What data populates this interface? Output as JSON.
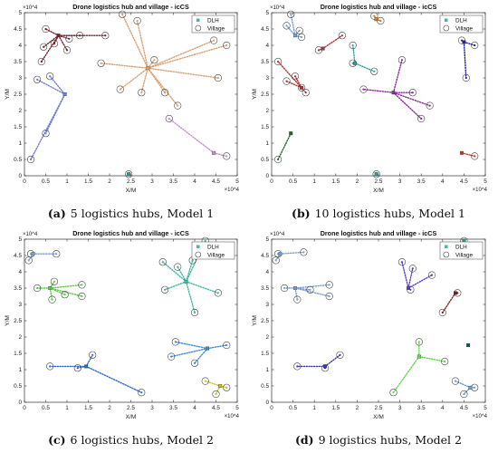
{
  "chart_data": [
    {
      "type": "scatter",
      "title": "Drone logistics hub and village - icCS",
      "xlabel": "X/M",
      "ylabel": "Y/M",
      "x_multiplier": "×10^4",
      "y_multiplier": "×10^4",
      "xlim": [
        0,
        5
      ],
      "ylim": [
        0,
        5
      ],
      "xticks": [
        "0",
        "0.5",
        "1",
        "1.5",
        "2",
        "2.5",
        "3",
        "3.5",
        "4",
        "4.5",
        "5"
      ],
      "yticks": [
        "0",
        "0.5",
        "1",
        "1.5",
        "2",
        "2.5",
        "3",
        "3.5",
        "4",
        "4.5",
        "5"
      ],
      "legend": [
        "DLH",
        "Village"
      ],
      "legend_position": "top-right",
      "caption_label": "(a)",
      "caption_text": "5 logistics hubs, Model 1",
      "hubs": [
        {
          "x": 0.8,
          "y": 4.3,
          "color": "#7a1f2a",
          "villages": [
            [
              0.5,
              4.5
            ],
            [
              0.7,
              4.05
            ],
            [
              0.45,
              3.95
            ],
            [
              1.0,
              3.85
            ],
            [
              0.4,
              3.5
            ],
            [
              1.3,
              4.3
            ],
            [
              1.9,
              4.3
            ],
            [
              1.05,
              4.2
            ]
          ]
        },
        {
          "x": 2.9,
          "y": 3.3,
          "color": "#d8a070",
          "villages": [
            [
              2.3,
              4.95
            ],
            [
              2.65,
              4.75
            ],
            [
              3.05,
              3.55
            ],
            [
              1.8,
              3.45
            ],
            [
              2.25,
              2.65
            ],
            [
              2.75,
              2.55
            ],
            [
              3.3,
              2.55
            ],
            [
              3.6,
              2.15
            ],
            [
              4.45,
              4.15
            ],
            [
              4.75,
              4.0
            ],
            [
              4.55,
              3.0
            ]
          ]
        },
        {
          "x": 0.95,
          "y": 2.5,
          "color": "#6f7bd6",
          "villages": [
            [
              0.3,
              2.95
            ],
            [
              0.6,
              3.05
            ],
            [
              0.5,
              1.3
            ],
            [
              0.15,
              0.5
            ]
          ]
        },
        {
          "x": 4.45,
          "y": 0.7,
          "color": "#c98ad0",
          "villages": [
            [
              3.4,
              1.75
            ],
            [
              4.75,
              0.6
            ]
          ]
        },
        {
          "x": 2.45,
          "y": 0.05,
          "color": "#2a9a9a",
          "villages": [
            [
              2.45,
              0.05
            ]
          ]
        }
      ]
    },
    {
      "type": "scatter",
      "title": "Drone logistics hub and village - icCS",
      "xlabel": "X/M",
      "ylabel": "Y/M",
      "x_multiplier": "×10^4",
      "y_multiplier": "×10^4",
      "xlim": [
        0,
        5
      ],
      "ylim": [
        0,
        5
      ],
      "xticks": [
        "0",
        "0.5",
        "1",
        "1.5",
        "2",
        "2.5",
        "3",
        "3.5",
        "4",
        "4.5",
        "5"
      ],
      "yticks": [
        "0",
        "0.5",
        "1",
        "1.5",
        "2",
        "2.5",
        "3",
        "3.5",
        "4",
        "4.5",
        "5"
      ],
      "legend": [
        "DLH",
        "Village"
      ],
      "legend_position": "top-right",
      "caption_label": "(b)",
      "caption_text": "10 logistics hubs, Model 1",
      "hubs": [
        {
          "x": 0.55,
          "y": 4.3,
          "color": "#7a9ed0",
          "villages": [
            [
              0.45,
              4.95
            ],
            [
              0.35,
              4.6
            ],
            [
              0.65,
              4.45
            ],
            [
              0.7,
              4.25
            ]
          ]
        },
        {
          "x": 1.2,
          "y": 3.9,
          "color": "#b33030",
          "villages": [
            [
              1.1,
              3.85
            ],
            [
              1.65,
              4.3
            ]
          ]
        },
        {
          "x": 0.7,
          "y": 2.7,
          "color": "#b33030",
          "villages": [
            [
              0.15,
              3.5
            ],
            [
              0.55,
              3.05
            ],
            [
              0.35,
              2.9
            ],
            [
              0.8,
              2.55
            ],
            [
              0.7,
              2.7
            ]
          ]
        },
        {
          "x": 1.95,
          "y": 3.45,
          "color": "#2aa7a0",
          "villages": [
            [
              1.9,
              4.0
            ],
            [
              2.4,
              3.2
            ],
            [
              1.9,
              3.45
            ]
          ]
        },
        {
          "x": 2.45,
          "y": 4.8,
          "color": "#d17a2a",
          "villages": [
            [
              2.4,
              4.9
            ],
            [
              2.55,
              4.75
            ]
          ]
        },
        {
          "x": 2.85,
          "y": 2.55,
          "color": "#8a2a9a",
          "villages": [
            [
              2.15,
              2.65
            ],
            [
              3.05,
              3.55
            ],
            [
              3.3,
              2.55
            ],
            [
              3.5,
              1.75
            ],
            [
              3.7,
              2.15
            ]
          ]
        },
        {
          "x": 4.5,
          "y": 4.1,
          "color": "#2020a0",
          "villages": [
            [
              4.45,
              4.15
            ],
            [
              4.75,
              4.0
            ],
            [
              4.55,
              3.0
            ]
          ]
        },
        {
          "x": 0.45,
          "y": 1.3,
          "color": "#1f6a2a",
          "villages": [
            [
              0.15,
              0.5
            ]
          ]
        },
        {
          "x": 4.45,
          "y": 0.7,
          "color": "#c0392b",
          "villages": [
            [
              4.75,
              0.6
            ]
          ]
        },
        {
          "x": 2.45,
          "y": 0.05,
          "color": "#2a9a9a",
          "villages": [
            [
              2.45,
              0.05
            ]
          ]
        }
      ]
    },
    {
      "type": "scatter",
      "title": "Drone logistics hub and village - icCS",
      "xlabel": "X/M",
      "ylabel": "Y/M",
      "x_multiplier": "×10^4",
      "y_multiplier": "×10^4",
      "xlim": [
        0,
        5
      ],
      "ylim": [
        0,
        5
      ],
      "xticks": [
        "0",
        "0.5",
        "1",
        "1.5",
        "2",
        "2.5",
        "3",
        "3.5",
        "4",
        "4.5",
        "5"
      ],
      "yticks": [
        "0",
        "0.5",
        "1",
        "1.5",
        "2",
        "2.5",
        "3",
        "3.5",
        "4",
        "4.5",
        "5"
      ],
      "legend": [
        "DLH",
        "Village"
      ],
      "legend_position": "top-right",
      "caption_label": "(c)",
      "caption_text": "6 logistics hubs, Model 2",
      "hubs": [
        {
          "x": 0.2,
          "y": 4.55,
          "color": "#7a9ed0",
          "villages": [
            [
              0.15,
              4.55
            ],
            [
              0.75,
              4.55
            ],
            [
              0.1,
              4.35
            ]
          ]
        },
        {
          "x": 0.6,
          "y": 3.5,
          "color": "#5fc84a",
          "villages": [
            [
              0.3,
              3.5
            ],
            [
              1.35,
              3.6
            ],
            [
              1.35,
              3.25
            ],
            [
              0.95,
              3.3
            ],
            [
              0.65,
              3.15
            ],
            [
              0.7,
              3.7
            ]
          ]
        },
        {
          "x": 3.8,
          "y": 3.7,
          "color": "#3fb8a0",
          "villages": [
            [
              3.25,
              4.3
            ],
            [
              3.6,
              4.15
            ],
            [
              3.95,
              4.35
            ],
            [
              4.25,
              4.95
            ],
            [
              4.55,
              3.35
            ],
            [
              4.0,
              2.75
            ],
            [
              3.3,
              3.45
            ]
          ]
        },
        {
          "x": 1.45,
          "y": 1.1,
          "color": "#2a6ad0",
          "villages": [
            [
              0.6,
              1.1
            ],
            [
              1.25,
              1.05
            ],
            [
              1.6,
              1.45
            ],
            [
              2.75,
              0.3
            ]
          ]
        },
        {
          "x": 4.3,
          "y": 1.65,
          "color": "#3a8ad8",
          "villages": [
            [
              3.55,
              1.85
            ],
            [
              3.45,
              1.4
            ],
            [
              4.0,
              1.2
            ],
            [
              4.75,
              1.75
            ]
          ]
        },
        {
          "x": 4.6,
          "y": 0.5,
          "color": "#c8c020",
          "villages": [
            [
              4.25,
              0.65
            ],
            [
              4.5,
              0.25
            ],
            [
              4.75,
              0.45
            ]
          ]
        }
      ]
    },
    {
      "type": "scatter",
      "title": "Drone logistics hub and village - icCS",
      "xlabel": "X/M",
      "ylabel": "Y/M",
      "x_multiplier": "×10^4",
      "y_multiplier": "×10^4",
      "xlim": [
        0,
        5
      ],
      "ylim": [
        0,
        5
      ],
      "xticks": [
        "0",
        "0.5",
        "1",
        "1.5",
        "2",
        "2.5",
        "3",
        "3.5",
        "4",
        "4.5",
        "5"
      ],
      "yticks": [
        "0",
        "0.5",
        "1",
        "1.5",
        "2",
        "2.5",
        "3",
        "3.5",
        "4",
        "4.5",
        "5"
      ],
      "legend": [
        "DLH",
        "Village"
      ],
      "legend_position": "top-right",
      "caption_label": "(d)",
      "caption_text": "9 logistics hubs, Model 2",
      "hubs": [
        {
          "x": 0.2,
          "y": 4.55,
          "color": "#7a9ed0",
          "villages": [
            [
              0.15,
              4.55
            ],
            [
              0.75,
              4.6
            ],
            [
              0.1,
              4.35
            ]
          ]
        },
        {
          "x": 0.55,
          "y": 3.5,
          "color": "#7a9ed0",
          "villages": [
            [
              0.3,
              3.5
            ],
            [
              1.35,
              3.6
            ],
            [
              1.35,
              3.25
            ],
            [
              0.9,
              3.45
            ],
            [
              0.6,
              3.15
            ]
          ]
        },
        {
          "x": 3.2,
          "y": 3.5,
          "color": "#5a3ad0",
          "villages": [
            [
              3.05,
              4.3
            ],
            [
              3.3,
              4.1
            ],
            [
              3.25,
              3.45
            ],
            [
              3.75,
              3.9
            ]
          ]
        },
        {
          "x": 4.3,
          "y": 3.35,
          "color": "#8a1a1a",
          "villages": [
            [
              4.0,
              2.75
            ],
            [
              4.35,
              3.35
            ]
          ]
        },
        {
          "x": 4.5,
          "y": 4.95,
          "color": "#2a9a9a",
          "villages": [
            [
              4.5,
              4.95
            ]
          ]
        },
        {
          "x": 3.45,
          "y": 1.4,
          "color": "#5fd84a",
          "villages": [
            [
              2.85,
              0.3
            ],
            [
              3.45,
              1.85
            ],
            [
              4.05,
              1.25
            ]
          ]
        },
        {
          "x": 1.25,
          "y": 1.1,
          "color": "#3a3ab0",
          "villages": [
            [
              0.6,
              1.1
            ],
            [
              1.25,
              1.05
            ],
            [
              1.6,
              1.45
            ]
          ]
        },
        {
          "x": 4.6,
          "y": 1.75,
          "color": "#0a5a4a",
          "villages": []
        },
        {
          "x": 4.65,
          "y": 0.45,
          "color": "#6a9ad8",
          "villages": [
            [
              4.3,
              0.65
            ],
            [
              4.5,
              0.25
            ],
            [
              4.75,
              0.45
            ]
          ]
        }
      ]
    }
  ]
}
